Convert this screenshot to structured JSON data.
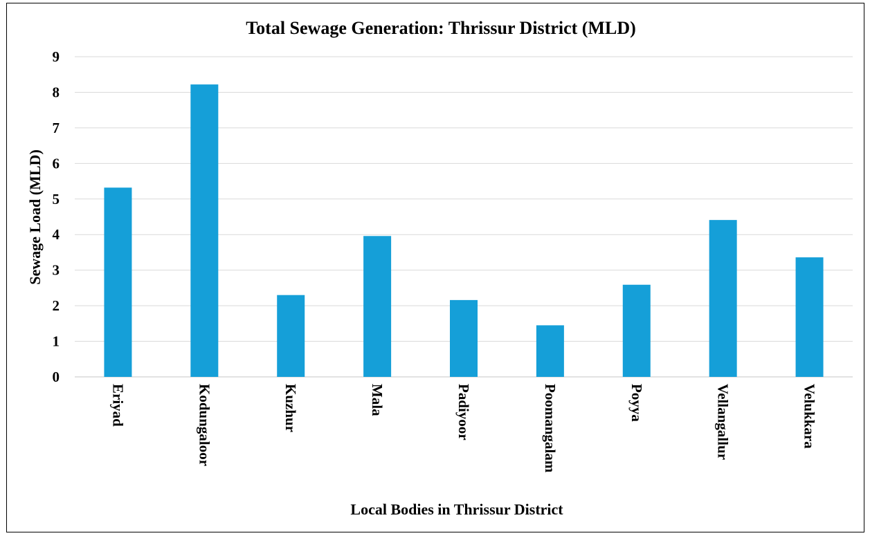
{
  "chart_data": {
    "type": "bar",
    "title": "Total Sewage Generation: Thrissur District (MLD)",
    "xlabel": "Local Bodies in Thrissur District",
    "ylabel": "Sewage Load (MLD)",
    "categories": [
      "Eriyad",
      "Kodungaloor",
      "Kuzhur",
      "Mala",
      "Padiyoor",
      "Poomangalam",
      "Poyya",
      "Vellangallur",
      "Velukkara"
    ],
    "values": [
      5.32,
      8.22,
      2.3,
      3.96,
      2.16,
      1.45,
      2.59,
      4.41,
      3.36
    ],
    "ylim": [
      0,
      9
    ],
    "yticks": [
      "0",
      "1",
      "2",
      "3",
      "4",
      "5",
      "6",
      "7",
      "8",
      "9"
    ],
    "grid": true,
    "legend": "none",
    "bar_color": "#159fd8"
  }
}
